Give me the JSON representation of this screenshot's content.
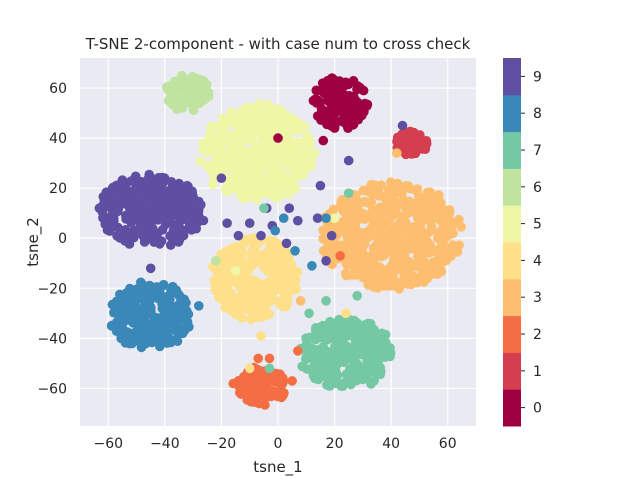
{
  "chart_data": {
    "type": "scatter",
    "title": "T-SNE 2-component - with case num to cross check",
    "xlabel": "tsne_1",
    "ylabel": "tsne_2",
    "xlim": [
      -70,
      70
    ],
    "ylim": [
      -75,
      72
    ],
    "xticks": [
      -60,
      -40,
      -20,
      0,
      20,
      40,
      60
    ],
    "yticks": [
      -60,
      -40,
      -20,
      0,
      20,
      40,
      60
    ],
    "grid": true,
    "legend": "colorbar-right",
    "colormap": "Spectral",
    "colorbar_ticks": [
      "0",
      "1",
      "2",
      "3",
      "4",
      "5",
      "6",
      "7",
      "8",
      "9"
    ],
    "class_colors": [
      "#9e0142",
      "#d53e4f",
      "#f46d43",
      "#fdbf6f",
      "#fee08b",
      "#eff7a6",
      "#c1e3a0",
      "#75c8a4",
      "#3a88b8",
      "#5e4fa2"
    ],
    "clusters": [
      {
        "class": 0,
        "cx": 22,
        "cy": 54,
        "rx": 11,
        "ry": 11
      },
      {
        "class": 1,
        "cx": 47,
        "cy": 38,
        "rx": 6,
        "ry": 5
      },
      {
        "class": 2,
        "cx": -6,
        "cy": -59,
        "rx": 10,
        "ry": 8
      },
      {
        "class": 3,
        "cx": 40,
        "cy": 1,
        "rx": 26,
        "ry": 22
      },
      {
        "class": 4,
        "cx": -8,
        "cy": -16,
        "rx": 16,
        "ry": 17
      },
      {
        "class": 5,
        "cx": -7,
        "cy": 34,
        "rx": 21,
        "ry": 20
      },
      {
        "class": 6,
        "cx": -32,
        "cy": 58,
        "rx": 8,
        "ry": 8
      },
      {
        "class": 7,
        "cx": 24,
        "cy": -46,
        "rx": 17,
        "ry": 15
      },
      {
        "class": 8,
        "cx": -45,
        "cy": -31,
        "rx": 15,
        "ry": 14
      },
      {
        "class": 9,
        "cx": -45,
        "cy": 11,
        "rx": 20,
        "ry": 15
      }
    ],
    "outliers": [
      {
        "x": -20,
        "y": 24,
        "class": 9
      },
      {
        "x": -18,
        "y": 6,
        "class": 9
      },
      {
        "x": -14,
        "y": 1,
        "class": 9
      },
      {
        "x": -10,
        "y": 6,
        "class": 9
      },
      {
        "x": -6,
        "y": 1,
        "class": 9
      },
      {
        "x": -4,
        "y": 12,
        "class": 9
      },
      {
        "x": -2,
        "y": 5,
        "class": 9
      },
      {
        "x": 4,
        "y": 12,
        "class": 9
      },
      {
        "x": 7,
        "y": 7,
        "class": 9
      },
      {
        "x": 15,
        "y": 21,
        "class": 9
      },
      {
        "x": 14,
        "y": 8,
        "class": 9
      },
      {
        "x": 19,
        "y": 1,
        "class": 9
      },
      {
        "x": 25,
        "y": 31,
        "class": 9
      },
      {
        "x": 44,
        "y": 45,
        "class": 9
      },
      {
        "x": -45,
        "y": -12,
        "class": 9
      },
      {
        "x": 3,
        "y": -2,
        "class": 9
      },
      {
        "x": 17,
        "y": -9,
        "class": 9
      },
      {
        "x": 0,
        "y": 40,
        "class": 0
      },
      {
        "x": 16,
        "y": 39,
        "class": 0
      },
      {
        "x": 20,
        "y": 44,
        "class": 0
      },
      {
        "x": 7,
        "y": -45,
        "class": 2
      },
      {
        "x": -3,
        "y": -48,
        "class": 2
      },
      {
        "x": -7,
        "y": -48,
        "class": 2
      },
      {
        "x": 22,
        "y": -7,
        "class": 2
      },
      {
        "x": 5,
        "y": -57,
        "class": 2
      },
      {
        "x": 42,
        "y": 34,
        "class": 3
      },
      {
        "x": 8,
        "y": -25,
        "class": 3
      },
      {
        "x": -6,
        "y": -39,
        "class": 4
      },
      {
        "x": -10,
        "y": -52,
        "class": 4
      },
      {
        "x": 24,
        "y": -30,
        "class": 4
      },
      {
        "x": 20,
        "y": 8,
        "class": 5
      },
      {
        "x": -15,
        "y": -13,
        "class": 5
      },
      {
        "x": -22,
        "y": -9,
        "class": 6
      },
      {
        "x": 17,
        "y": -25,
        "class": 7
      },
      {
        "x": 28,
        "y": -23,
        "class": 7
      },
      {
        "x": 11,
        "y": -30,
        "class": 7
      },
      {
        "x": -3,
        "y": -52,
        "class": 7
      },
      {
        "x": 25,
        "y": 18,
        "class": 7
      },
      {
        "x": -5,
        "y": 12,
        "class": 7
      },
      {
        "x": 2,
        "y": 8,
        "class": 8
      },
      {
        "x": -1,
        "y": 3,
        "class": 8
      },
      {
        "x": -28,
        "y": -27,
        "class": 8
      },
      {
        "x": 17,
        "y": 8,
        "class": 8
      },
      {
        "x": 6,
        "y": -5,
        "class": 8
      },
      {
        "x": 12,
        "y": -11,
        "class": 8
      }
    ]
  }
}
